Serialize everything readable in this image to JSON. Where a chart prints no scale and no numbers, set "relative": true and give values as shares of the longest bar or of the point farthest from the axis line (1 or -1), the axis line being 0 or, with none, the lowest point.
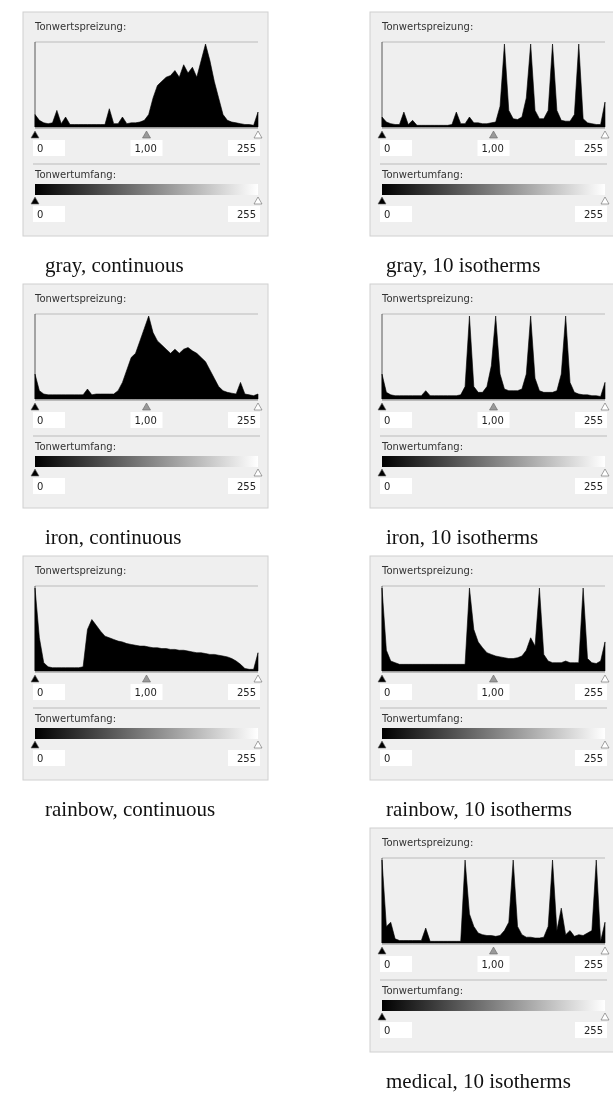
{
  "chart_data": [
    {
      "type": "area",
      "title": "gray, continuous",
      "relative": true,
      "color": "#000000",
      "annotations": [
        "Tonwertspreizung:",
        "0",
        "1,00",
        "255",
        "Tonwertumfang:",
        "0",
        "255"
      ],
      "categories": [
        null,
        null,
        null,
        null,
        null,
        null,
        null,
        null,
        null,
        null,
        null,
        null,
        null,
        null,
        null,
        null,
        null,
        null,
        null,
        null,
        null,
        null,
        null,
        null,
        null,
        null,
        null,
        null,
        null,
        null,
        null,
        null,
        null,
        null,
        null,
        null,
        null,
        null,
        null,
        null,
        null,
        null,
        null,
        null,
        null,
        null,
        null,
        null,
        null,
        null,
        null,
        null
      ],
      "values": [
        0.15,
        0.08,
        0.05,
        0.04,
        0.05,
        0.2,
        0.04,
        0.12,
        0.03,
        0.03,
        0.03,
        0.03,
        0.03,
        0.03,
        0.03,
        0.03,
        0.03,
        0.22,
        0.04,
        0.04,
        0.12,
        0.04,
        0.05,
        0.05,
        0.06,
        0.08,
        0.15,
        0.35,
        0.5,
        0.55,
        0.6,
        0.62,
        0.68,
        0.6,
        0.75,
        0.65,
        0.72,
        0.6,
        0.8,
        1,
        0.8,
        0.55,
        0.35,
        0.15,
        0.08,
        0.06,
        0.05,
        0.04,
        0.03,
        0.03,
        0.02,
        0.18
      ]
    },
    {
      "type": "area",
      "title": "gray, 10 isotherms",
      "relative": true,
      "color": "#000000",
      "annotations": [
        "Tonwertspreizung:",
        "0",
        "1,00",
        "255",
        "Tonwertumfang:",
        "0",
        "255"
      ],
      "categories": [
        null,
        null,
        null,
        null,
        null,
        null,
        null,
        null,
        null,
        null,
        null,
        null,
        null,
        null,
        null,
        null,
        null,
        null,
        null,
        null,
        null,
        null,
        null,
        null,
        null,
        null,
        null,
        null,
        null,
        null,
        null,
        null,
        null,
        null,
        null,
        null,
        null,
        null,
        null,
        null,
        null,
        null,
        null,
        null,
        null,
        null,
        null,
        null,
        null,
        null,
        null,
        null
      ],
      "values": [
        0.12,
        0.06,
        0.04,
        0.03,
        0.03,
        0.18,
        0.03,
        0.08,
        0.02,
        0.02,
        0.02,
        0.02,
        0.02,
        0.02,
        0.02,
        0.02,
        0.03,
        0.18,
        0.04,
        0.04,
        0.12,
        0.05,
        0.05,
        0.04,
        0.04,
        0.05,
        0.06,
        0.25,
        1,
        0.2,
        0.1,
        0.09,
        0.12,
        0.35,
        1,
        0.2,
        0.1,
        0.1,
        0.2,
        1,
        0.2,
        0.08,
        0.07,
        0.07,
        0.15,
        1,
        0.1,
        0.05,
        0.04,
        0.03,
        0.03,
        0.3
      ]
    },
    {
      "type": "area",
      "title": "iron, continuous",
      "relative": true,
      "color": "#000000",
      "annotations": [
        "Tonwertspreizung:",
        "0",
        "1,00",
        "255",
        "Tonwertumfang:",
        "0",
        "255"
      ],
      "categories": [
        null,
        null,
        null,
        null,
        null,
        null,
        null,
        null,
        null,
        null,
        null,
        null,
        null,
        null,
        null,
        null,
        null,
        null,
        null,
        null,
        null,
        null,
        null,
        null,
        null,
        null,
        null,
        null,
        null,
        null,
        null,
        null,
        null,
        null,
        null,
        null,
        null,
        null,
        null,
        null,
        null,
        null,
        null,
        null,
        null,
        null,
        null,
        null,
        null,
        null,
        null,
        null
      ],
      "values": [
        0.3,
        0.1,
        0.06,
        0.05,
        0.05,
        0.05,
        0.05,
        0.05,
        0.05,
        0.05,
        0.05,
        0.05,
        0.12,
        0.05,
        0.06,
        0.06,
        0.06,
        0.06,
        0.06,
        0.1,
        0.2,
        0.35,
        0.5,
        0.55,
        0.7,
        0.85,
        1,
        0.8,
        0.7,
        0.65,
        0.6,
        0.55,
        0.6,
        0.55,
        0.6,
        0.62,
        0.58,
        0.55,
        0.5,
        0.45,
        0.35,
        0.25,
        0.15,
        0.1,
        0.08,
        0.07,
        0.06,
        0.2,
        0.06,
        0.05,
        0.04,
        0.06
      ]
    },
    {
      "type": "area",
      "title": "iron, 10 isotherms",
      "relative": true,
      "color": "#000000",
      "annotations": [
        "Tonwertspreizung:",
        "0",
        "1,00",
        "255",
        "Tonwertumfang:",
        "0",
        "255"
      ],
      "categories": [
        null,
        null,
        null,
        null,
        null,
        null,
        null,
        null,
        null,
        null,
        null,
        null,
        null,
        null,
        null,
        null,
        null,
        null,
        null,
        null,
        null,
        null,
        null,
        null,
        null,
        null,
        null,
        null,
        null,
        null,
        null,
        null,
        null,
        null,
        null,
        null,
        null,
        null,
        null,
        null,
        null,
        null,
        null,
        null,
        null,
        null,
        null,
        null,
        null,
        null,
        null,
        null
      ],
      "values": [
        0.3,
        0.08,
        0.05,
        0.04,
        0.04,
        0.04,
        0.04,
        0.04,
        0.04,
        0.04,
        0.1,
        0.04,
        0.04,
        0.04,
        0.04,
        0.04,
        0.04,
        0.04,
        0.05,
        0.15,
        1,
        0.15,
        0.08,
        0.08,
        0.15,
        0.4,
        1,
        0.3,
        0.12,
        0.1,
        0.1,
        0.1,
        0.12,
        0.3,
        1,
        0.25,
        0.1,
        0.08,
        0.08,
        0.08,
        0.1,
        0.3,
        1,
        0.2,
        0.08,
        0.06,
        0.05,
        0.05,
        0.04,
        0.04,
        0.03,
        0.2
      ]
    },
    {
      "type": "area",
      "title": "rainbow, continuous",
      "relative": true,
      "color": "#000000",
      "annotations": [
        "Tonwertspreizung:",
        "0",
        "1,00",
        "255",
        "Tonwertumfang:",
        "0",
        "255"
      ],
      "categories": [
        null,
        null,
        null,
        null,
        null,
        null,
        null,
        null,
        null,
        null,
        null,
        null,
        null,
        null,
        null,
        null,
        null,
        null,
        null,
        null,
        null,
        null,
        null,
        null,
        null,
        null,
        null,
        null,
        null,
        null,
        null,
        null,
        null,
        null,
        null,
        null,
        null,
        null,
        null,
        null,
        null,
        null,
        null,
        null,
        null,
        null,
        null,
        null,
        null,
        null,
        null,
        null
      ],
      "values": [
        1,
        0.4,
        0.1,
        0.05,
        0.04,
        0.04,
        0.04,
        0.04,
        0.04,
        0.04,
        0.04,
        0.05,
        0.5,
        0.62,
        0.55,
        0.48,
        0.42,
        0.4,
        0.38,
        0.36,
        0.35,
        0.33,
        0.32,
        0.31,
        0.3,
        0.3,
        0.29,
        0.28,
        0.28,
        0.27,
        0.27,
        0.26,
        0.26,
        0.25,
        0.25,
        0.24,
        0.23,
        0.22,
        0.22,
        0.21,
        0.2,
        0.2,
        0.19,
        0.18,
        0.17,
        0.15,
        0.12,
        0.08,
        0.03,
        0.02,
        0.02,
        0.22
      ]
    },
    {
      "type": "area",
      "title": "rainbow, 10 isotherms",
      "relative": true,
      "color": "#000000",
      "annotations": [
        "Tonwertspreizung:",
        "0",
        "1,00",
        "255",
        "Tonwertumfang:",
        "0",
        "255"
      ],
      "categories": [
        null,
        null,
        null,
        null,
        null,
        null,
        null,
        null,
        null,
        null,
        null,
        null,
        null,
        null,
        null,
        null,
        null,
        null,
        null,
        null,
        null,
        null,
        null,
        null,
        null,
        null,
        null,
        null,
        null,
        null,
        null,
        null,
        null,
        null,
        null,
        null,
        null,
        null,
        null,
        null,
        null,
        null,
        null,
        null,
        null,
        null,
        null,
        null,
        null,
        null,
        null,
        null
      ],
      "values": [
        1,
        0.25,
        0.12,
        0.1,
        0.08,
        0.08,
        0.08,
        0.08,
        0.08,
        0.08,
        0.08,
        0.08,
        0.08,
        0.08,
        0.08,
        0.08,
        0.08,
        0.08,
        0.08,
        0.08,
        1,
        0.5,
        0.35,
        0.28,
        0.22,
        0.2,
        0.18,
        0.17,
        0.16,
        0.15,
        0.15,
        0.16,
        0.18,
        0.25,
        0.4,
        0.3,
        1,
        0.2,
        0.12,
        0.1,
        0.1,
        0.1,
        0.12,
        0.1,
        0.1,
        0.1,
        1,
        0.15,
        0.1,
        0.09,
        0.12,
        0.35
      ]
    },
    {
      "type": "area",
      "title": "medical, 10 isotherms",
      "relative": true,
      "color": "#000000",
      "annotations": [
        "Tonwertspreizung:",
        "0",
        "1,00",
        "255",
        "Tonwertumfang:",
        "0",
        "255"
      ],
      "categories": [
        null,
        null,
        null,
        null,
        null,
        null,
        null,
        null,
        null,
        null,
        null,
        null,
        null,
        null,
        null,
        null,
        null,
        null,
        null,
        null,
        null,
        null,
        null,
        null,
        null,
        null,
        null,
        null,
        null,
        null,
        null,
        null,
        null,
        null,
        null,
        null,
        null,
        null,
        null,
        null,
        null,
        null,
        null,
        null,
        null,
        null,
        null,
        null,
        null,
        null,
        null,
        null
      ],
      "values": [
        1,
        0.2,
        0.25,
        0.05,
        0.03,
        0.03,
        0.03,
        0.03,
        0.03,
        0.03,
        0.18,
        0.02,
        0.02,
        0.02,
        0.02,
        0.02,
        0.02,
        0.02,
        0.02,
        1,
        0.35,
        0.2,
        0.12,
        0.1,
        0.09,
        0.09,
        0.08,
        0.09,
        0.15,
        0.25,
        1,
        0.2,
        0.1,
        0.07,
        0.07,
        0.06,
        0.06,
        0.07,
        0.2,
        1,
        0.15,
        0.42,
        0.1,
        0.15,
        0.08,
        0.1,
        0.09,
        0.12,
        0.15,
        1,
        0.02,
        0.25
      ]
    }
  ]
}
